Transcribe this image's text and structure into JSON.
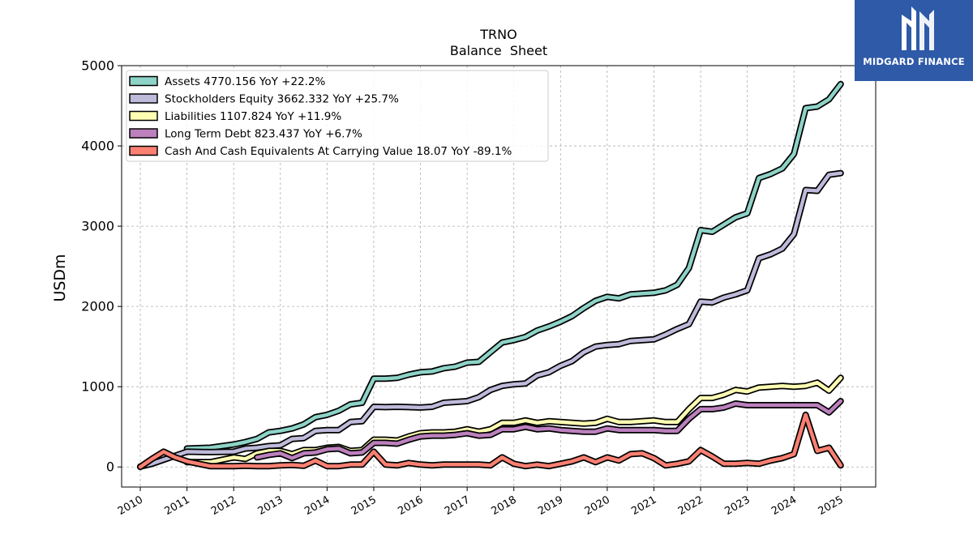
{
  "logo": {
    "text": "MIDGARD FINANCE",
    "background": "#2e5aa8"
  },
  "chart_data": {
    "type": "line",
    "title": "TRNO",
    "subtitle": "Balance  Sheet",
    "ylabel": "USDm",
    "xlabel": "",
    "xlim": [
      2009.6,
      2025.75
    ],
    "ylim": [
      -250,
      5000
    ],
    "x_ticks": [
      2010,
      2011,
      2012,
      2013,
      2014,
      2015,
      2016,
      2017,
      2018,
      2019,
      2020,
      2021,
      2022,
      2023,
      2024,
      2025
    ],
    "y_ticks": [
      0,
      1000,
      2000,
      3000,
      4000,
      5000
    ],
    "grid": true,
    "legend_position": "top-left",
    "series": [
      {
        "name": "Assets",
        "legend": "Assets  4770.156 YoY +22.2%",
        "color": "#8dd3c7",
        "points": [
          [
            2011.0,
            230
          ],
          [
            2011.5,
            240
          ],
          [
            2012.0,
            280
          ],
          [
            2012.25,
            310
          ],
          [
            2012.5,
            350
          ],
          [
            2012.75,
            430
          ],
          [
            2013.0,
            450
          ],
          [
            2013.25,
            480
          ],
          [
            2013.5,
            530
          ],
          [
            2013.75,
            620
          ],
          [
            2014.0,
            650
          ],
          [
            2014.25,
            700
          ],
          [
            2014.5,
            780
          ],
          [
            2014.75,
            800
          ],
          [
            2015.0,
            1100
          ],
          [
            2015.25,
            1100
          ],
          [
            2015.5,
            1110
          ],
          [
            2015.75,
            1150
          ],
          [
            2016.0,
            1180
          ],
          [
            2016.25,
            1190
          ],
          [
            2016.5,
            1230
          ],
          [
            2016.75,
            1250
          ],
          [
            2017.0,
            1300
          ],
          [
            2017.25,
            1310
          ],
          [
            2017.5,
            1430
          ],
          [
            2017.75,
            1550
          ],
          [
            2018.0,
            1580
          ],
          [
            2018.25,
            1620
          ],
          [
            2018.5,
            1700
          ],
          [
            2018.75,
            1750
          ],
          [
            2019.0,
            1810
          ],
          [
            2019.25,
            1880
          ],
          [
            2019.5,
            1980
          ],
          [
            2019.75,
            2070
          ],
          [
            2020.0,
            2120
          ],
          [
            2020.25,
            2100
          ],
          [
            2020.5,
            2150
          ],
          [
            2020.75,
            2160
          ],
          [
            2021.0,
            2170
          ],
          [
            2021.25,
            2200
          ],
          [
            2021.5,
            2270
          ],
          [
            2021.75,
            2480
          ],
          [
            2022.0,
            2950
          ],
          [
            2022.25,
            2930
          ],
          [
            2022.5,
            3020
          ],
          [
            2022.75,
            3110
          ],
          [
            2023.0,
            3160
          ],
          [
            2023.25,
            3600
          ],
          [
            2023.5,
            3650
          ],
          [
            2023.75,
            3720
          ],
          [
            2024.0,
            3900
          ],
          [
            2024.25,
            4470
          ],
          [
            2024.5,
            4490
          ],
          [
            2024.75,
            4580
          ],
          [
            2025.0,
            4770
          ]
        ]
      },
      {
        "name": "Stockholders Equity",
        "legend": "Stockholders Equity  3662.332 YoY +25.7%",
        "color": "#bebada",
        "points": [
          [
            2010.0,
            5
          ],
          [
            2010.25,
            40
          ],
          [
            2010.5,
            90
          ],
          [
            2010.75,
            140
          ],
          [
            2011.0,
            190
          ],
          [
            2011.5,
            185
          ],
          [
            2012.0,
            190
          ],
          [
            2012.25,
            230
          ],
          [
            2012.5,
            240
          ],
          [
            2012.75,
            260
          ],
          [
            2013.0,
            270
          ],
          [
            2013.25,
            350
          ],
          [
            2013.5,
            360
          ],
          [
            2013.75,
            450
          ],
          [
            2014.0,
            460
          ],
          [
            2014.25,
            460
          ],
          [
            2014.5,
            560
          ],
          [
            2014.75,
            570
          ],
          [
            2015.0,
            750
          ],
          [
            2015.25,
            745
          ],
          [
            2015.5,
            750
          ],
          [
            2015.75,
            745
          ],
          [
            2016.0,
            740
          ],
          [
            2016.25,
            750
          ],
          [
            2016.5,
            800
          ],
          [
            2016.75,
            810
          ],
          [
            2017.0,
            820
          ],
          [
            2017.25,
            870
          ],
          [
            2017.5,
            960
          ],
          [
            2017.75,
            1010
          ],
          [
            2018.0,
            1030
          ],
          [
            2018.25,
            1040
          ],
          [
            2018.5,
            1140
          ],
          [
            2018.75,
            1180
          ],
          [
            2019.0,
            1260
          ],
          [
            2019.25,
            1320
          ],
          [
            2019.5,
            1430
          ],
          [
            2019.75,
            1500
          ],
          [
            2020.0,
            1520
          ],
          [
            2020.25,
            1530
          ],
          [
            2020.5,
            1570
          ],
          [
            2020.75,
            1580
          ],
          [
            2021.0,
            1590
          ],
          [
            2021.25,
            1650
          ],
          [
            2021.5,
            1720
          ],
          [
            2021.75,
            1780
          ],
          [
            2022.0,
            2060
          ],
          [
            2022.25,
            2050
          ],
          [
            2022.5,
            2110
          ],
          [
            2022.75,
            2150
          ],
          [
            2023.0,
            2200
          ],
          [
            2023.25,
            2600
          ],
          [
            2023.5,
            2650
          ],
          [
            2023.75,
            2720
          ],
          [
            2024.0,
            2900
          ],
          [
            2024.25,
            3450
          ],
          [
            2024.5,
            3440
          ],
          [
            2024.75,
            3640
          ],
          [
            2025.0,
            3660
          ]
        ]
      },
      {
        "name": "Liabilities",
        "legend": "Liabilities  1107.824 YoY +11.9%",
        "color": "#ffffb3",
        "points": [
          [
            2011.0,
            60
          ],
          [
            2011.5,
            60
          ],
          [
            2012.0,
            120
          ],
          [
            2012.25,
            100
          ],
          [
            2012.5,
            170
          ],
          [
            2012.75,
            200
          ],
          [
            2013.0,
            200
          ],
          [
            2013.25,
            160
          ],
          [
            2013.5,
            210
          ],
          [
            2013.75,
            210
          ],
          [
            2014.0,
            240
          ],
          [
            2014.25,
            250
          ],
          [
            2014.5,
            200
          ],
          [
            2014.75,
            210
          ],
          [
            2015.0,
            340
          ],
          [
            2015.25,
            340
          ],
          [
            2015.5,
            330
          ],
          [
            2015.75,
            380
          ],
          [
            2016.0,
            420
          ],
          [
            2016.25,
            430
          ],
          [
            2016.5,
            430
          ],
          [
            2016.75,
            440
          ],
          [
            2017.0,
            470
          ],
          [
            2017.25,
            440
          ],
          [
            2017.5,
            470
          ],
          [
            2017.75,
            550
          ],
          [
            2018.0,
            550
          ],
          [
            2018.25,
            580
          ],
          [
            2018.5,
            550
          ],
          [
            2018.75,
            570
          ],
          [
            2019.0,
            560
          ],
          [
            2019.25,
            550
          ],
          [
            2019.5,
            540
          ],
          [
            2019.75,
            550
          ],
          [
            2020.0,
            600
          ],
          [
            2020.25,
            560
          ],
          [
            2020.5,
            560
          ],
          [
            2020.75,
            570
          ],
          [
            2021.0,
            580
          ],
          [
            2021.25,
            560
          ],
          [
            2021.5,
            560
          ],
          [
            2021.75,
            720
          ],
          [
            2022.0,
            860
          ],
          [
            2022.25,
            860
          ],
          [
            2022.5,
            900
          ],
          [
            2022.75,
            960
          ],
          [
            2023.0,
            940
          ],
          [
            2023.25,
            990
          ],
          [
            2023.5,
            1000
          ],
          [
            2023.75,
            1010
          ],
          [
            2024.0,
            1000
          ],
          [
            2024.25,
            1010
          ],
          [
            2024.5,
            1050
          ],
          [
            2024.75,
            950
          ],
          [
            2025.0,
            1110
          ]
        ]
      },
      {
        "name": "Long Term Debt",
        "legend": "Long Term Debt  823.437 YoY +6.7%",
        "color": "#bc80bd",
        "points": [
          [
            2012.5,
            120
          ],
          [
            2012.75,
            150
          ],
          [
            2013.0,
            170
          ],
          [
            2013.25,
            110
          ],
          [
            2013.5,
            170
          ],
          [
            2013.75,
            180
          ],
          [
            2014.0,
            220
          ],
          [
            2014.25,
            230
          ],
          [
            2014.5,
            170
          ],
          [
            2014.75,
            180
          ],
          [
            2015.0,
            300
          ],
          [
            2015.25,
            300
          ],
          [
            2015.5,
            290
          ],
          [
            2015.75,
            340
          ],
          [
            2016.0,
            380
          ],
          [
            2016.25,
            390
          ],
          [
            2016.5,
            390
          ],
          [
            2016.75,
            400
          ],
          [
            2017.0,
            420
          ],
          [
            2017.25,
            390
          ],
          [
            2017.5,
            400
          ],
          [
            2017.75,
            470
          ],
          [
            2018.0,
            470
          ],
          [
            2018.25,
            500
          ],
          [
            2018.5,
            470
          ],
          [
            2018.75,
            480
          ],
          [
            2019.0,
            460
          ],
          [
            2019.25,
            450
          ],
          [
            2019.5,
            440
          ],
          [
            2019.75,
            440
          ],
          [
            2020.0,
            480
          ],
          [
            2020.25,
            460
          ],
          [
            2020.5,
            460
          ],
          [
            2020.75,
            460
          ],
          [
            2021.0,
            460
          ],
          [
            2021.25,
            450
          ],
          [
            2021.5,
            450
          ],
          [
            2021.75,
            600
          ],
          [
            2022.0,
            720
          ],
          [
            2022.25,
            720
          ],
          [
            2022.5,
            740
          ],
          [
            2022.75,
            790
          ],
          [
            2023.0,
            770
          ],
          [
            2023.25,
            770
          ],
          [
            2023.5,
            770
          ],
          [
            2023.75,
            770
          ],
          [
            2024.0,
            770
          ],
          [
            2024.25,
            770
          ],
          [
            2024.5,
            770
          ],
          [
            2024.75,
            680
          ],
          [
            2025.0,
            820
          ]
        ]
      },
      {
        "name": "Cash And Cash Equivalents At Carrying Value",
        "legend": "Cash And Cash Equivalents At Carrying Value  18.07 YoY -89.1%",
        "color": "#fb8072",
        "points": [
          [
            2010.0,
            0
          ],
          [
            2010.25,
            100
          ],
          [
            2010.5,
            190
          ],
          [
            2010.75,
            120
          ],
          [
            2011.0,
            70
          ],
          [
            2011.25,
            40
          ],
          [
            2011.5,
            10
          ],
          [
            2011.75,
            10
          ],
          [
            2012.0,
            10
          ],
          [
            2012.25,
            15
          ],
          [
            2012.5,
            10
          ],
          [
            2012.75,
            10
          ],
          [
            2013.0,
            20
          ],
          [
            2013.25,
            25
          ],
          [
            2013.5,
            15
          ],
          [
            2013.75,
            80
          ],
          [
            2014.0,
            10
          ],
          [
            2014.25,
            10
          ],
          [
            2014.5,
            30
          ],
          [
            2014.75,
            30
          ],
          [
            2015.0,
            190
          ],
          [
            2015.25,
            30
          ],
          [
            2015.5,
            20
          ],
          [
            2015.75,
            50
          ],
          [
            2016.0,
            30
          ],
          [
            2016.25,
            20
          ],
          [
            2016.5,
            30
          ],
          [
            2016.75,
            30
          ],
          [
            2017.0,
            30
          ],
          [
            2017.25,
            30
          ],
          [
            2017.5,
            20
          ],
          [
            2017.75,
            120
          ],
          [
            2018.0,
            40
          ],
          [
            2018.25,
            10
          ],
          [
            2018.5,
            30
          ],
          [
            2018.75,
            10
          ],
          [
            2019.0,
            40
          ],
          [
            2019.25,
            70
          ],
          [
            2019.5,
            120
          ],
          [
            2019.75,
            60
          ],
          [
            2020.0,
            120
          ],
          [
            2020.25,
            80
          ],
          [
            2020.5,
            160
          ],
          [
            2020.75,
            170
          ],
          [
            2021.0,
            110
          ],
          [
            2021.25,
            20
          ],
          [
            2021.5,
            40
          ],
          [
            2021.75,
            70
          ],
          [
            2022.0,
            210
          ],
          [
            2022.25,
            130
          ],
          [
            2022.5,
            40
          ],
          [
            2022.75,
            40
          ],
          [
            2023.0,
            50
          ],
          [
            2023.25,
            40
          ],
          [
            2023.5,
            80
          ],
          [
            2023.75,
            110
          ],
          [
            2024.0,
            160
          ],
          [
            2024.25,
            650
          ],
          [
            2024.5,
            200
          ],
          [
            2024.75,
            240
          ],
          [
            2025.0,
            20
          ]
        ]
      }
    ]
  }
}
